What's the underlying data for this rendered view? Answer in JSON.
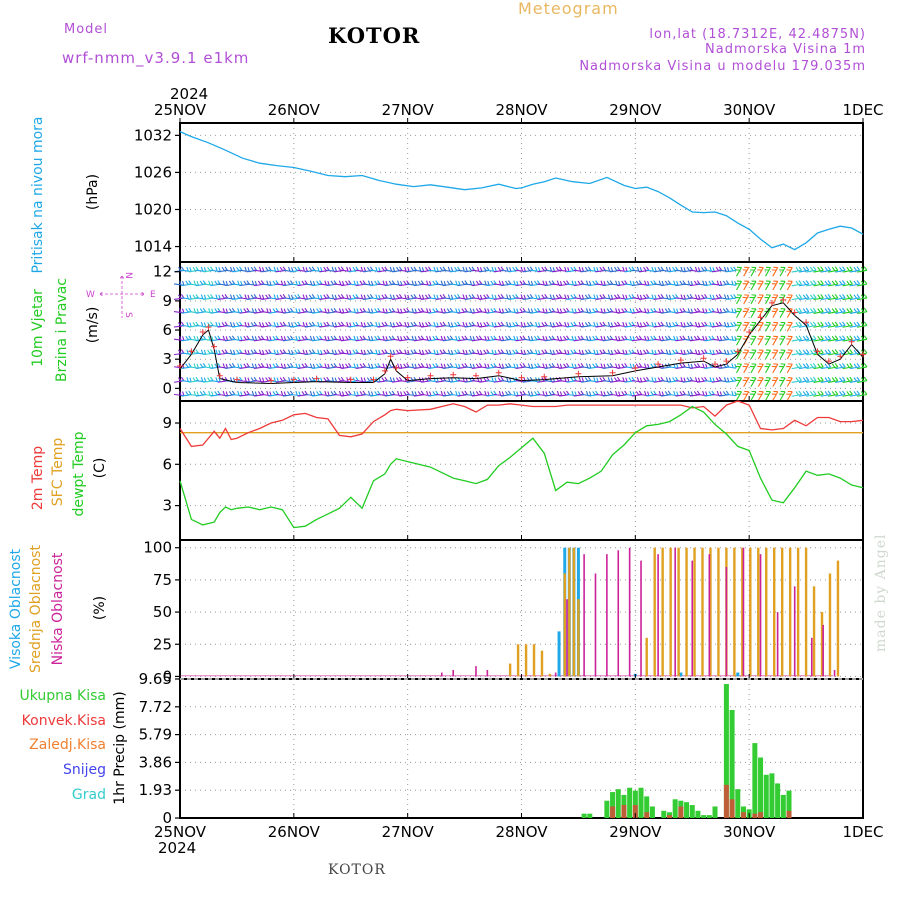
{
  "header": {
    "model_label": "Model",
    "model_name": "wrf-nmm_v3.9.1 e1km",
    "station": "KOTOR",
    "product": "Meteogram",
    "coords": "lon,lat (18.7312E, 42.4875N)",
    "elevation": "Nadmorska Visina 1m",
    "model_elevation": "Nadmorska Visina u modelu 179.035m",
    "credit": "made by Angel",
    "footer_station": "KOTOR"
  },
  "time_axis": {
    "year": "2024",
    "labels": [
      "25NOV",
      "26NOV",
      "27NOV",
      "28NOV",
      "29NOV",
      "30NOV",
      "1DEC"
    ],
    "end_year": "2024"
  },
  "colors": {
    "pressure": "#1ea8e8",
    "temp": "#ee3a3a",
    "sfc_temp": "#e0a020",
    "dewpt": "#22cc22",
    "high_cloud": "#1ea8e8",
    "mid_cloud": "#e0a020",
    "low_cloud": "#cc2299",
    "total_precip": "#33cc33",
    "conv_precip": "#ee3a3a",
    "freezing": "#f08030",
    "snow": "#4444ee",
    "hail": "#33cccc",
    "wind_purple": "#8822cc",
    "wind_grid": "#aaaaaa",
    "wind_axis": "#cc44cc"
  },
  "chart_data": [
    {
      "type": "line",
      "panel": "pressure",
      "ylabel": "Pritisak na nivou mora",
      "unit": "(hPa)",
      "yticks": [
        1032,
        1026,
        1020,
        1014
      ],
      "ylim": [
        1011.5,
        1034.0
      ],
      "x": [
        0,
        0.1,
        0.25,
        0.4,
        0.55,
        0.7,
        0.85,
        1.0,
        1.15,
        1.3,
        1.45,
        1.6,
        1.75,
        1.9,
        2.05,
        2.2,
        2.35,
        2.5,
        2.65,
        2.8,
        2.95,
        3.0,
        3.1,
        3.2,
        3.3,
        3.45,
        3.6,
        3.75,
        3.9,
        4.0,
        4.1,
        4.2,
        4.3,
        4.4,
        4.5,
        4.6,
        4.7,
        4.8,
        4.9,
        5.0,
        5.1,
        5.2,
        5.3,
        5.4,
        5.5,
        5.6,
        5.7,
        5.8,
        5.9,
        6.0
      ],
      "series": [
        {
          "values": [
            1032.6,
            1031.8,
            1030.8,
            1029.6,
            1028.3,
            1027.5,
            1027.1,
            1026.8,
            1026.2,
            1025.5,
            1025.3,
            1025.5,
            1024.7,
            1024.1,
            1023.7,
            1024.0,
            1023.6,
            1023.2,
            1023.5,
            1024.1,
            1023.4,
            1023.5,
            1024.1,
            1024.5,
            1025.1,
            1024.5,
            1024.2,
            1025.2,
            1023.9,
            1023.4,
            1023.6,
            1022.9,
            1021.9,
            1020.7,
            1019.6,
            1019.5,
            1019.6,
            1019.0,
            1017.8,
            1016.8,
            1015.2,
            1013.8,
            1014.4,
            1013.5,
            1014.6,
            1016.2,
            1016.8,
            1017.3,
            1017.0,
            1016.0
          ]
        }
      ]
    },
    {
      "type": "line",
      "panel": "wind",
      "ylabel": "10m Vjetar Brzina i Pravac",
      "unit": "(m/s)",
      "compass": {
        "n": "N",
        "s": "S",
        "w": "W",
        "e": "E"
      },
      "yticks": [
        0,
        3,
        6,
        9,
        12
      ],
      "ylim": [
        -1.3,
        13.0
      ],
      "x": [
        0,
        0.1,
        0.2,
        0.25,
        0.3,
        0.35,
        0.5,
        0.8,
        1.0,
        1.2,
        1.5,
        1.7,
        1.8,
        1.85,
        1.9,
        2.0,
        2.2,
        2.4,
        2.6,
        2.8,
        3.0,
        3.2,
        3.5,
        3.8,
        4.0,
        4.2,
        4.4,
        4.6,
        4.7,
        4.8,
        4.9,
        5.0,
        5.1,
        5.2,
        5.3,
        5.4,
        5.5,
        5.6,
        5.7,
        5.8,
        5.9,
        6.0
      ],
      "series": [
        {
          "values": [
            2.0,
            3.5,
            5.5,
            6.0,
            4.0,
            1.0,
            0.6,
            0.5,
            0.6,
            0.7,
            0.6,
            0.6,
            1.5,
            3.0,
            1.8,
            0.8,
            1.0,
            1.1,
            1.0,
            1.3,
            0.8,
            0.9,
            1.2,
            1.3,
            1.8,
            2.2,
            2.6,
            2.8,
            2.2,
            2.5,
            3.5,
            5.5,
            7.0,
            8.5,
            8.8,
            7.5,
            6.5,
            3.5,
            2.5,
            3.0,
            4.5,
            3.2
          ]
        }
      ]
    },
    {
      "type": "line",
      "panel": "temperature",
      "ylabel": "2m Temp / SFC Temp / dewpt Temp",
      "labels": [
        "2m Temp",
        "SFC Temp",
        "dewpt Temp"
      ],
      "unit": "(C)",
      "yticks": [
        9,
        6,
        3
      ],
      "ylim": [
        0.5,
        10.6
      ],
      "x": [
        0,
        0.1,
        0.2,
        0.3,
        0.35,
        0.4,
        0.45,
        0.5,
        0.6,
        0.7,
        0.8,
        0.9,
        1.0,
        1.1,
        1.2,
        1.3,
        1.4,
        1.5,
        1.6,
        1.7,
        1.8,
        1.85,
        1.9,
        2.0,
        2.2,
        2.4,
        2.5,
        2.6,
        2.7,
        2.8,
        2.9,
        3.0,
        3.1,
        3.2,
        3.3,
        3.4,
        3.5,
        3.6,
        3.7,
        3.8,
        3.9,
        4.0,
        4.1,
        4.2,
        4.3,
        4.4,
        4.5,
        4.6,
        4.7,
        4.8,
        4.9,
        5.0,
        5.1,
        5.2,
        5.3,
        5.4,
        5.5,
        5.6,
        5.7,
        5.8,
        5.9,
        6.0
      ],
      "series": [
        {
          "name": "2m Temp",
          "values": [
            8.6,
            7.3,
            7.4,
            8.4,
            7.9,
            8.6,
            7.8,
            7.9,
            8.3,
            8.6,
            9.0,
            9.2,
            9.6,
            9.7,
            9.4,
            9.3,
            8.1,
            8.0,
            8.2,
            9.1,
            9.6,
            9.9,
            10.0,
            9.9,
            10.0,
            10.4,
            10.2,
            9.8,
            10.3,
            10.3,
            10.4,
            10.3,
            10.2,
            10.2,
            10.2,
            10.3,
            10.3,
            10.3,
            10.3,
            10.3,
            10.3,
            10.3,
            10.3,
            10.3,
            10.3,
            10.3,
            10.1,
            10.2,
            9.5,
            10.3,
            10.6,
            10.3,
            8.6,
            8.5,
            8.6,
            9.2,
            8.8,
            9.4,
            9.4,
            9.1,
            9.1,
            9.2
          ]
        },
        {
          "name": "SFC Temp",
          "values": [
            8.3,
            8.3,
            8.3,
            8.3,
            8.3,
            8.3,
            8.3,
            8.3,
            8.3,
            8.3,
            8.3,
            8.3,
            8.3,
            8.3,
            8.3,
            8.3,
            8.3,
            8.3,
            8.3,
            8.3,
            8.3,
            8.3,
            8.3,
            8.3,
            8.3,
            8.3,
            8.3,
            8.3,
            8.3,
            8.3,
            8.3,
            8.3,
            8.3,
            8.3,
            8.3,
            8.3,
            8.3,
            8.3,
            8.3,
            8.3,
            8.3,
            8.3,
            8.3,
            8.3,
            8.3,
            8.3,
            8.3,
            8.3,
            8.3,
            8.3,
            8.3,
            8.3,
            8.3,
            8.3,
            8.3,
            8.3,
            8.3,
            8.3,
            8.3,
            8.3,
            8.3,
            8.3
          ]
        },
        {
          "name": "dewpt Temp",
          "values": [
            4.8,
            2.0,
            1.6,
            1.8,
            2.5,
            2.9,
            2.7,
            2.8,
            2.9,
            2.7,
            2.9,
            2.7,
            1.4,
            1.5,
            2.0,
            2.4,
            2.8,
            3.6,
            2.8,
            4.8,
            5.3,
            6.0,
            6.4,
            6.2,
            5.8,
            5.0,
            4.8,
            4.6,
            4.9,
            5.9,
            6.5,
            7.2,
            7.9,
            6.8,
            4.1,
            4.7,
            4.6,
            5.0,
            5.5,
            6.7,
            7.4,
            8.3,
            8.8,
            8.9,
            9.1,
            9.6,
            10.2,
            9.8,
            8.9,
            8.2,
            7.3,
            7.0,
            5.0,
            3.4,
            3.2,
            4.3,
            5.5,
            5.2,
            5.3,
            5.0,
            4.5,
            4.3
          ]
        }
      ]
    },
    {
      "type": "bar",
      "panel": "clouds",
      "ylabel": "Visoka Oblacnost / Srednja Oblacnost / Niska Oblacnost",
      "labels": [
        "Visoka Oblacnost",
        "Srednja Oblacnost",
        "Niska Oblacnost"
      ],
      "unit": "(%)",
      "yticks": [
        100,
        75,
        50,
        25,
        0
      ],
      "ylim": [
        -2,
        106
      ],
      "series": [
        {
          "name": "Visoka Oblacnost",
          "x": [
            3.33,
            3.38,
            3.42,
            3.46,
            3.5,
            4.0,
            4.4,
            4.9
          ],
          "values": [
            35,
            100,
            100,
            100,
            100,
            2,
            3,
            3
          ]
        },
        {
          "name": "Srednja Oblacnost",
          "x": [
            2.9,
            2.97,
            3.04,
            3.11,
            3.18,
            3.25,
            3.38,
            3.42,
            3.46,
            3.5,
            4.1,
            4.17,
            4.24,
            4.31,
            4.38,
            4.45,
            4.52,
            4.59,
            4.66,
            4.73,
            4.8,
            4.87,
            4.94,
            5.01,
            5.08,
            5.15,
            5.22,
            5.29,
            5.36,
            5.43,
            5.5,
            5.57,
            5.64,
            5.71,
            5.78
          ],
          "values": [
            10,
            25,
            25,
            25,
            20,
            2,
            80,
            100,
            100,
            60,
            30,
            100,
            100,
            100,
            100,
            100,
            100,
            100,
            100,
            100,
            100,
            100,
            100,
            100,
            100,
            100,
            100,
            100,
            100,
            100,
            100,
            70,
            50,
            80,
            90
          ]
        },
        {
          "name": "Niska Oblacnost",
          "x": [
            2.3,
            2.4,
            2.6,
            2.7,
            3.3,
            3.4,
            3.55,
            3.65,
            3.75,
            3.85,
            3.95,
            4.05,
            4.2,
            4.35,
            4.5,
            4.65,
            4.8,
            4.95,
            5.1,
            5.25,
            5.4,
            5.55,
            5.65,
            5.75
          ],
          "values": [
            3,
            5,
            8,
            5,
            3,
            60,
            95,
            80,
            95,
            98,
            100,
            90,
            95,
            100,
            90,
            95,
            85,
            100,
            95,
            50,
            70,
            30,
            40,
            5
          ]
        }
      ]
    },
    {
      "type": "bar",
      "panel": "precipitation",
      "ylabel": "1hr Precip",
      "unit": "(mm)",
      "legend": [
        "Ukupna Kisa",
        "Konvek.Kisa",
        "Zaledj.Kisa",
        "Snijeg",
        "Grad"
      ],
      "yticks": [
        9.65,
        7.72,
        5.79,
        3.86,
        1.93,
        0
      ],
      "ylim": [
        0,
        9.65
      ],
      "series": [
        {
          "name": "Ukupna Kisa",
          "x": [
            3.55,
            3.6,
            3.75,
            3.8,
            3.85,
            3.9,
            3.95,
            4.0,
            4.05,
            4.1,
            4.15,
            4.25,
            4.3,
            4.35,
            4.4,
            4.45,
            4.5,
            4.55,
            4.6,
            4.65,
            4.7,
            4.8,
            4.85,
            4.9,
            4.95,
            5.0,
            5.05,
            5.1,
            5.15,
            5.2,
            5.25,
            5.3,
            5.35
          ],
          "values": [
            0.3,
            0.3,
            1.2,
            1.8,
            2.0,
            1.6,
            2.1,
            1.9,
            2.1,
            1.5,
            0.8,
            0.5,
            0.4,
            1.3,
            1.2,
            1.1,
            0.9,
            0.5,
            0.2,
            0.2,
            0.8,
            9.3,
            7.5,
            2.0,
            0.8,
            0.6,
            5.2,
            4.2,
            3.0,
            3.1,
            2.4,
            1.6,
            1.9
          ]
        },
        {
          "name": "Konvek.Kisa",
          "x": [
            3.8,
            3.9,
            4.0,
            4.1,
            4.3,
            4.4,
            4.8,
            4.85,
            4.95,
            5.05,
            5.1,
            5.35
          ],
          "values": [
            0.8,
            0.9,
            0.9,
            0.4,
            0.2,
            0.8,
            2.3,
            1.3,
            0.4,
            0.3,
            0.4,
            0.5
          ]
        }
      ]
    }
  ]
}
